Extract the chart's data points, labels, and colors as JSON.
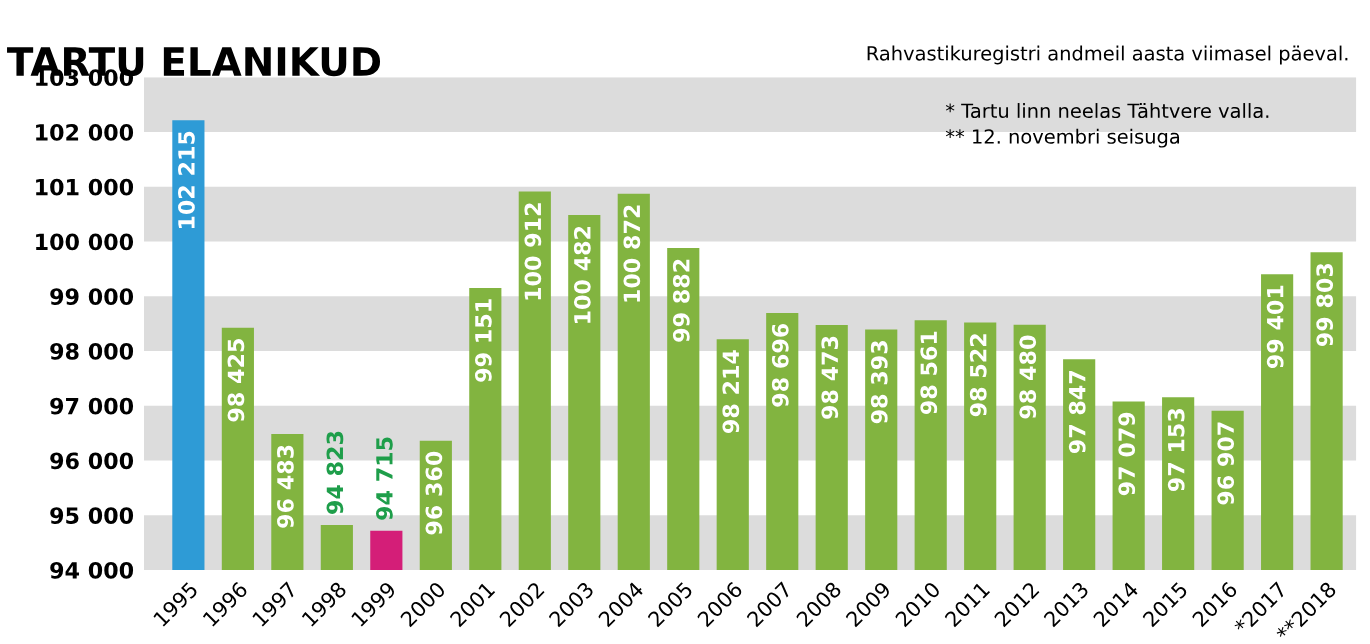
{
  "chart_data": {
    "type": "bar",
    "title": "TARTU ELANIKUD",
    "categories": [
      "1995",
      "1996",
      "1997",
      "1998",
      "1999",
      "2000",
      "2001",
      "2002",
      "2003",
      "2004",
      "2005",
      "2006",
      "2007",
      "2008",
      "2009",
      "2010",
      "2011",
      "2012",
      "2013",
      "2014",
      "2015",
      "2016",
      "*2017",
      "**2018"
    ],
    "values": [
      102215,
      98425,
      96483,
      94823,
      94715,
      96360,
      99151,
      100912,
      100482,
      100872,
      99882,
      98214,
      98696,
      98473,
      98393,
      98561,
      98522,
      98480,
      97847,
      97079,
      97153,
      96907,
      99401,
      99803
    ],
    "value_labels": [
      "102 215",
      "98 425",
      "96 483",
      "94 823",
      "94 715",
      "96 360",
      "99 151",
      "100 912",
      "100 482",
      "100 872",
      "99 882",
      "98 214",
      "98 696",
      "98 473",
      "98 393",
      "98 561",
      "98 522",
      "98 480",
      "97 847",
      "97 079",
      "97 153",
      "96 907",
      "99 401",
      "99 803"
    ],
    "colors": [
      "#2e9bd6",
      "#82b440",
      "#82b440",
      "#82b440",
      "#d41e78",
      "#82b440",
      "#82b440",
      "#82b440",
      "#82b440",
      "#82b440",
      "#82b440",
      "#82b440",
      "#82b440",
      "#82b440",
      "#82b440",
      "#82b440",
      "#82b440",
      "#82b440",
      "#82b440",
      "#82b440",
      "#82b440",
      "#82b440",
      "#82b440",
      "#82b440"
    ],
    "ylim": [
      94000,
      103000
    ],
    "yticks": [
      {
        "value": 94000,
        "label": "94 000"
      },
      {
        "value": 95000,
        "label": "95 000"
      },
      {
        "value": 96000,
        "label": "96 000"
      },
      {
        "value": 97000,
        "label": "97 000"
      },
      {
        "value": 98000,
        "label": "98 000"
      },
      {
        "value": 99000,
        "label": "99 000"
      },
      {
        "value": 100000,
        "label": "100 000"
      },
      {
        "value": 101000,
        "label": "101 000"
      },
      {
        "value": 102000,
        "label": "102 000"
      },
      {
        "value": 103000,
        "label": "103 000"
      }
    ],
    "bands": [
      {
        "axis": "y",
        "from": 94000,
        "to": 95000,
        "color": "#dcdcdc"
      },
      {
        "axis": "y",
        "from": 96000,
        "to": 97000,
        "color": "#dcdcdc"
      },
      {
        "axis": "y",
        "from": 98000,
        "to": 99000,
        "color": "#dcdcdc"
      },
      {
        "axis": "y",
        "from": 100000,
        "to": 101000,
        "color": "#dcdcdc"
      },
      {
        "axis": "y",
        "from": 102000,
        "to": 103000,
        "color": "#dcdcdc"
      }
    ],
    "annotations": [
      "Rahvastikuregistri andmeil aasta viimasel päeval.",
      "* Tartu linn neelas Tähtvere valla.",
      "** 12. novembri seisuga"
    ],
    "legend": false,
    "grid": false
  }
}
